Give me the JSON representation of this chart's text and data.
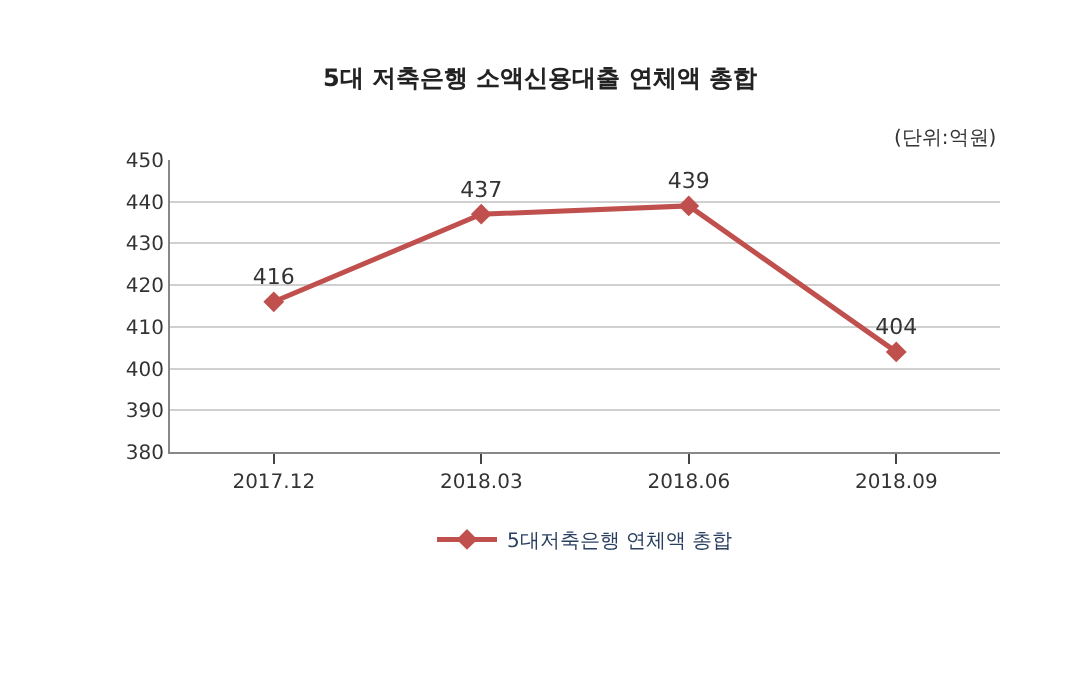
{
  "chart_data": {
    "type": "line",
    "title": "5대 저축은행 소액신용대출 연체액 총합",
    "annotations": [
      "(단위:억원)"
    ],
    "categories": [
      "2017.12",
      "2018.03",
      "2018.06",
      "2018.09"
    ],
    "series": [
      {
        "name": "5대저축은행 연체액 총합",
        "color": "#c0504d",
        "values": [
          416,
          437,
          439,
          404
        ]
      }
    ],
    "ylim": [
      380,
      450
    ],
    "yticks": [
      380,
      390,
      400,
      410,
      420,
      430,
      440,
      450
    ],
    "grid": "y",
    "legend": "bottom",
    "marker": "diamond",
    "line_style": "solid",
    "data_labels": true
  }
}
